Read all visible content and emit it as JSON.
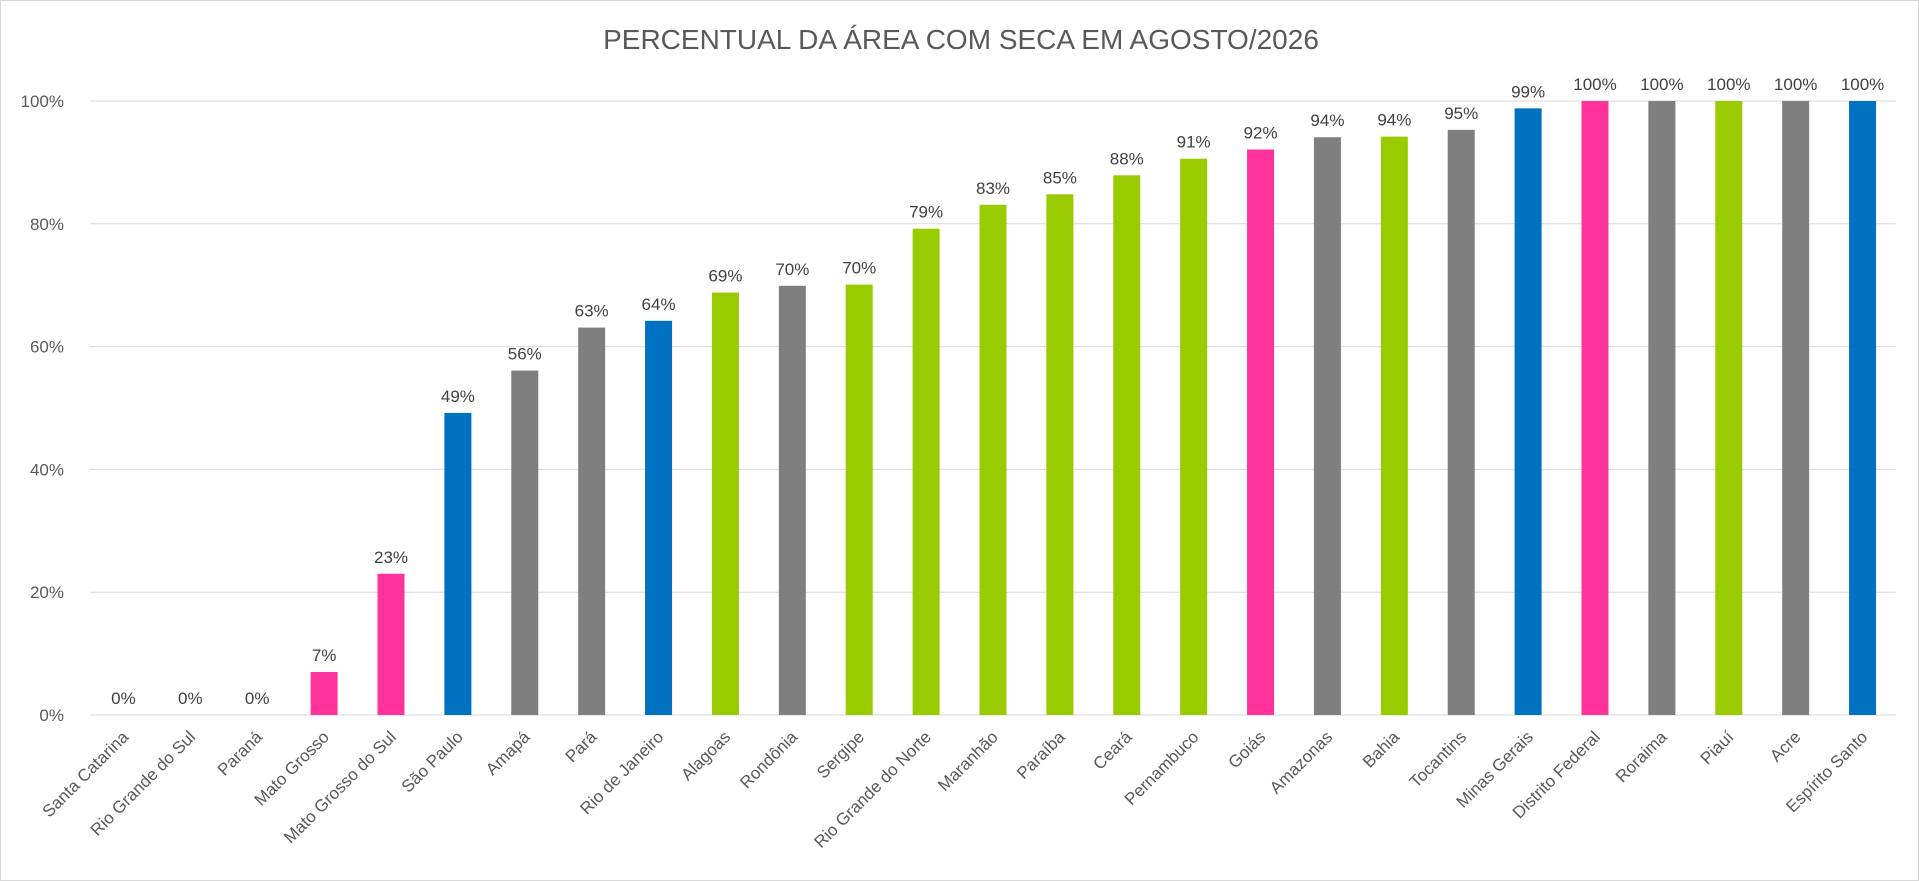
{
  "chart_data": {
    "type": "bar",
    "title": "PERCENTUAL DA ÁREA COM SECA EM AGOSTO/2026",
    "xlabel": "",
    "ylabel": "",
    "ylim": [
      0,
      100
    ],
    "yticks": [
      "0%",
      "20%",
      "40%",
      "60%",
      "80%",
      "100%"
    ],
    "grid": true,
    "legend": "none",
    "categories": [
      "Santa Catarina",
      "Rio Grande do Sul",
      "Paraná",
      "Mato Grosso",
      "Mato Grosso do Sul",
      "São Paulo",
      "Amapá",
      "Pará",
      "Rio de Janeiro",
      "Alagoas",
      "Rondônia",
      "Sergipe",
      "Rio Grande do Norte",
      "Maranhão",
      "Paraíba",
      "Ceará",
      "Pernambuco",
      "Goiás",
      "Amazonas",
      "Bahia",
      "Tocantins",
      "Minas Gerais",
      "Distrito Federal",
      "Roraima",
      "Piauí",
      "Acre",
      "Espírito Santo"
    ],
    "values": [
      0,
      0,
      0,
      7,
      23,
      49.2,
      56.1,
      63.1,
      64.2,
      68.8,
      69.9,
      70.1,
      79.2,
      83.1,
      84.8,
      87.9,
      90.6,
      92.1,
      94.1,
      94.2,
      95.3,
      98.8,
      100,
      100,
      100,
      100,
      100
    ],
    "data_labels": [
      "0%",
      "0%",
      "0%",
      "7%",
      "23%",
      "49%",
      "56%",
      "63%",
      "64%",
      "69%",
      "70%",
      "70%",
      "79%",
      "83%",
      "85%",
      "88%",
      "91%",
      "92%",
      "94%",
      "94%",
      "95%",
      "99%",
      "100%",
      "100%",
      "100%",
      "100%",
      "100%"
    ],
    "colors": [
      "#7f7f7f",
      "#7f7f7f",
      "#7f7f7f",
      "#ff3399",
      "#ff3399",
      "#0070c0",
      "#7f7f7f",
      "#7f7f7f",
      "#0070c0",
      "#99cc00",
      "#7f7f7f",
      "#99cc00",
      "#99cc00",
      "#99cc00",
      "#99cc00",
      "#99cc00",
      "#99cc00",
      "#ff3399",
      "#7f7f7f",
      "#99cc00",
      "#7f7f7f",
      "#0070c0",
      "#ff3399",
      "#7f7f7f",
      "#99cc00",
      "#7f7f7f",
      "#0070c0"
    ]
  }
}
